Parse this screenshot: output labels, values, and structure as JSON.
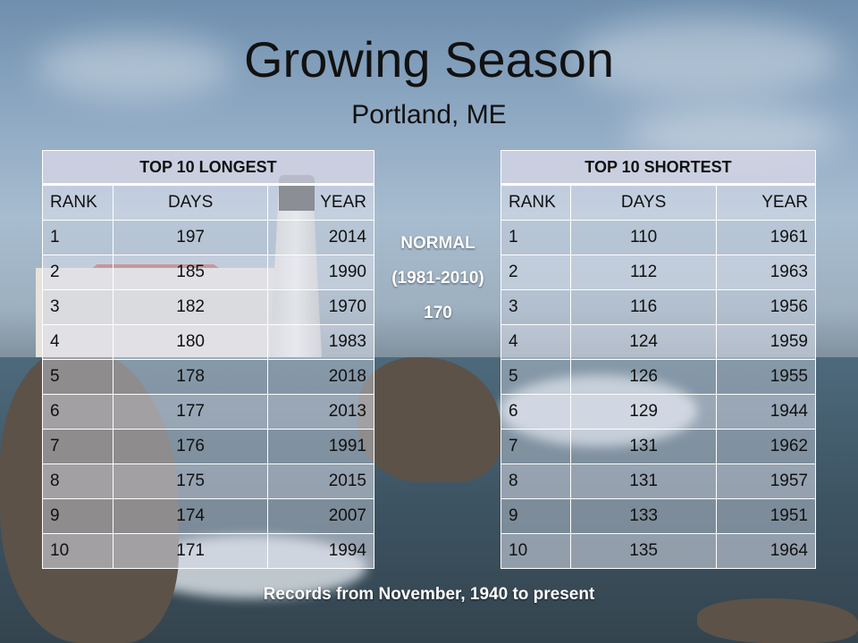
{
  "title": "Growing Season",
  "subtitle": "Portland, ME",
  "normal": {
    "label": "NORMAL",
    "period": "(1981-2010)",
    "value": "170"
  },
  "footer": "Records from November, 1940 to present",
  "longest": {
    "header": "TOP 10  LONGEST",
    "columns": [
      "RANK",
      "DAYS",
      "YEAR"
    ],
    "rows": [
      [
        "1",
        "197",
        "2014"
      ],
      [
        "2",
        "185",
        "1990"
      ],
      [
        "3",
        "182",
        "1970"
      ],
      [
        "4",
        "180",
        "1983"
      ],
      [
        "5",
        "178",
        "2018"
      ],
      [
        "6",
        "177",
        "2013"
      ],
      [
        "7",
        "176",
        "1991"
      ],
      [
        "8",
        "175",
        "2015"
      ],
      [
        "9",
        "174",
        "2007"
      ],
      [
        "10",
        "171",
        "1994"
      ]
    ]
  },
  "shortest": {
    "header": "TOP 10 SHORTEST",
    "columns": [
      "RANK",
      "DAYS",
      "YEAR"
    ],
    "rows": [
      [
        "1",
        "110",
        "1961"
      ],
      [
        "2",
        "112",
        "1963"
      ],
      [
        "3",
        "116",
        "1956"
      ],
      [
        "4",
        "124",
        "1959"
      ],
      [
        "5",
        "126",
        "1955"
      ],
      [
        "6",
        "129",
        "1944"
      ],
      [
        "7",
        "131",
        "1962"
      ],
      [
        "8",
        "131",
        "1957"
      ],
      [
        "9",
        "133",
        "1951"
      ],
      [
        "10",
        "135",
        "1964"
      ]
    ]
  }
}
